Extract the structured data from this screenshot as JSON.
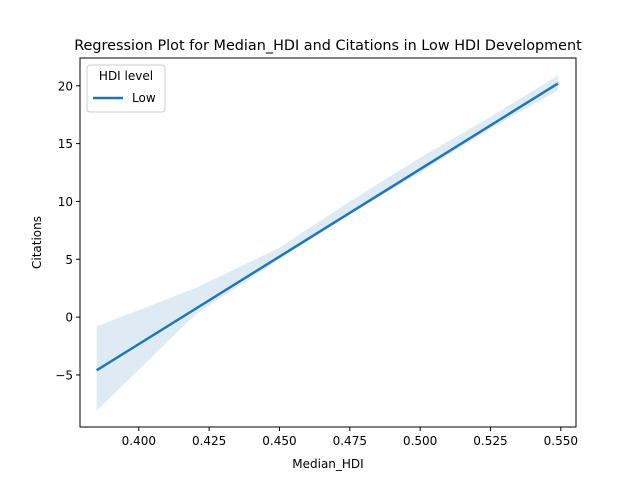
{
  "chart_data": {
    "type": "line",
    "title": "Regression Plot for Median_HDI and Citations in Low HDI Development",
    "xlabel": "Median_HDI",
    "ylabel": "Citations",
    "xlim": [
      0.3791,
      0.5554
    ],
    "ylim": [
      -9.5,
      22.4
    ],
    "x_ticks": [
      0.4,
      0.425,
      0.45,
      0.475,
      0.5,
      0.525,
      0.55
    ],
    "x_tick_labels": [
      "0.400",
      "0.425",
      "0.450",
      "0.475",
      "0.500",
      "0.525",
      "0.550"
    ],
    "y_ticks": [
      -5,
      0,
      5,
      10,
      15,
      20
    ],
    "y_tick_labels": [
      "−5",
      "0",
      "5",
      "10",
      "15",
      "20"
    ],
    "grid": false,
    "legend": {
      "title": "HDI level",
      "placement": "top-left",
      "entries": [
        "Low"
      ]
    },
    "series": [
      {
        "name": "Low",
        "color": "#1f77b4",
        "band_color": "#1f77b4",
        "x": [
          0.385,
          0.549
        ],
        "y": [
          -4.6,
          20.2
        ],
        "confidence_band": {
          "x": [
            0.385,
            0.42,
            0.45,
            0.475,
            0.5,
            0.525,
            0.549
          ],
          "lower": [
            -8.1,
            0.2,
            5.0,
            8.9,
            12.5,
            16.3,
            19.6
          ],
          "upper": [
            -0.8,
            2.5,
            6.0,
            10.0,
            13.8,
            17.3,
            20.9
          ]
        }
      }
    ]
  }
}
